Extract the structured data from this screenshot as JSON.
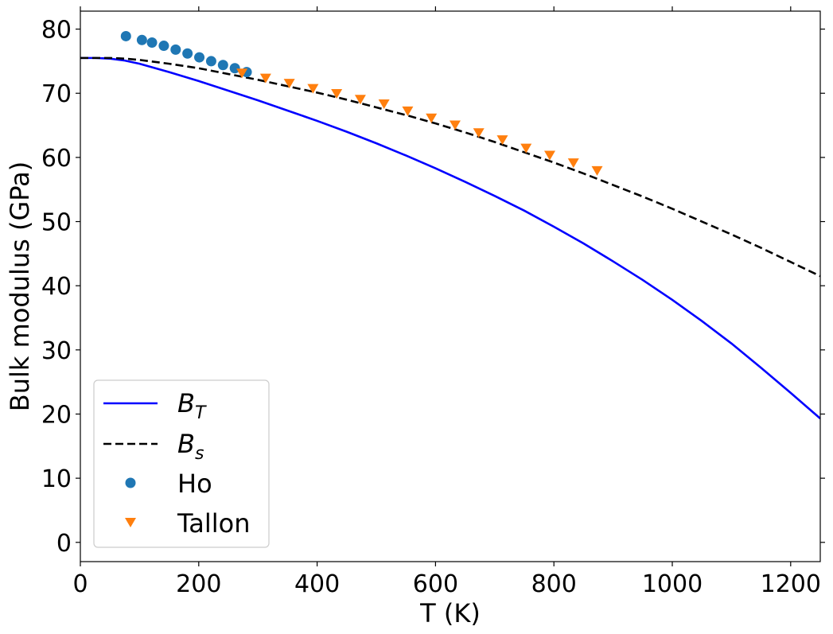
{
  "chart_data": {
    "type": "line",
    "xlabel": "T (K)",
    "ylabel": "Bulk modulus (GPa)",
    "xlim": [
      0,
      1250
    ],
    "ylim": [
      -3,
      82.8
    ],
    "xticks": [
      0,
      200,
      400,
      600,
      800,
      1000,
      1200
    ],
    "yticks": [
      0,
      10,
      20,
      30,
      40,
      50,
      60,
      70,
      80
    ],
    "grid": false,
    "legend_position": "lower-left",
    "series": [
      {
        "name": "B_T",
        "legend_main": "B",
        "legend_sub": "T",
        "style": "solid",
        "color": "#0000ff",
        "x": [
          0,
          25,
          50,
          75,
          100,
          150,
          200,
          250,
          300,
          350,
          400,
          450,
          500,
          550,
          600,
          650,
          700,
          750,
          800,
          850,
          900,
          950,
          1000,
          1050,
          1100,
          1150,
          1200,
          1250
        ],
        "y": [
          75.5,
          75.5,
          75.4,
          75.1,
          74.6,
          73.3,
          71.9,
          70.4,
          68.9,
          67.3,
          65.7,
          64.0,
          62.2,
          60.3,
          58.3,
          56.2,
          54.0,
          51.7,
          49.2,
          46.6,
          43.8,
          40.9,
          37.8,
          34.5,
          31.0,
          27.2,
          23.3,
          19.3
        ]
      },
      {
        "name": "B_s",
        "legend_main": "B",
        "legend_sub": "s",
        "style": "dashed",
        "color": "#000000",
        "x": [
          0,
          25,
          50,
          75,
          100,
          150,
          200,
          250,
          300,
          350,
          400,
          450,
          500,
          550,
          600,
          650,
          700,
          750,
          800,
          850,
          900,
          950,
          1000,
          1050,
          1100,
          1150,
          1200,
          1250
        ],
        "y": [
          75.5,
          75.5,
          75.5,
          75.4,
          75.2,
          74.6,
          73.9,
          73.0,
          72.1,
          71.1,
          70.1,
          69.0,
          67.8,
          66.6,
          65.3,
          63.9,
          62.4,
          60.8,
          59.2,
          57.5,
          55.7,
          53.9,
          52.0,
          50.0,
          48.0,
          45.9,
          43.7,
          41.5
        ]
      },
      {
        "name": "Ho",
        "marker": "circle",
        "color": "#1f77b4",
        "x": [
          77,
          104,
          121,
          141,
          161,
          181,
          201,
          221,
          241,
          261,
          281
        ],
        "y": [
          78.9,
          78.3,
          77.9,
          77.4,
          76.8,
          76.2,
          75.6,
          75.0,
          74.4,
          73.9,
          73.3
        ]
      },
      {
        "name": "Tallon",
        "marker": "triangle-down",
        "color": "#ff7f0e",
        "x": [
          273,
          313,
          353,
          393,
          433,
          473,
          513,
          553,
          593,
          633,
          673,
          713,
          753,
          793,
          833,
          873
        ],
        "y": [
          73.1,
          72.3,
          71.5,
          70.7,
          69.9,
          69.0,
          68.3,
          67.2,
          66.1,
          65.0,
          63.8,
          62.7,
          61.4,
          60.3,
          59.1,
          57.9
        ]
      }
    ]
  }
}
